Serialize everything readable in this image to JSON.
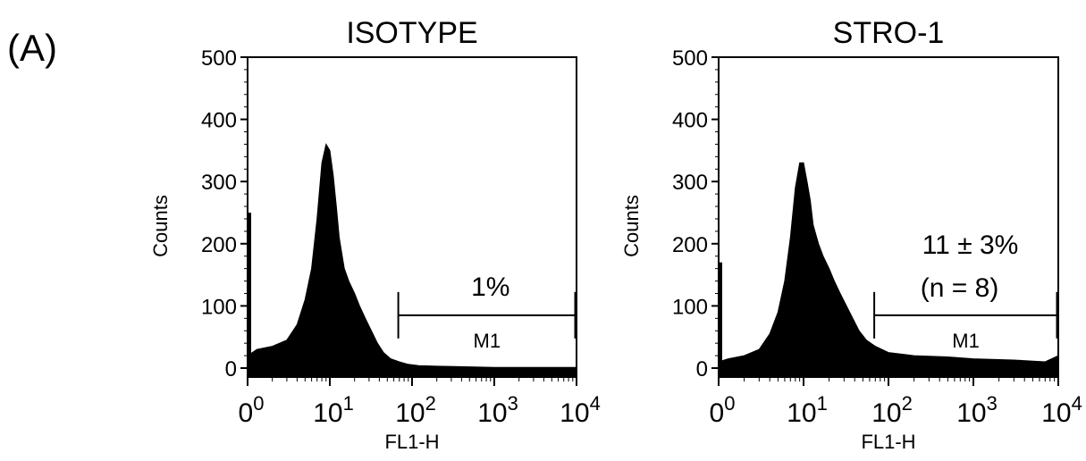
{
  "figure": {
    "panel_label": "(A)"
  },
  "colors": {
    "histogram": "#000000",
    "background": "#ffffff"
  },
  "chart_data": [
    {
      "type": "histogram",
      "title": "ISOTYPE",
      "xlabel": "FL1-H",
      "ylabel": "Counts",
      "x_scale": "log",
      "xlim": [
        1,
        10000
      ],
      "ylim": [
        0,
        500
      ],
      "y_ticks": [
        "0",
        "100",
        "200",
        "300",
        "400",
        "500"
      ],
      "x_ticks": [
        {
          "base": "0",
          "exp": "0"
        },
        {
          "base": "10",
          "exp": "1"
        },
        {
          "base": "10",
          "exp": "2"
        },
        {
          "base": "10",
          "exp": "3"
        },
        {
          "base": "10",
          "exp": "4"
        }
      ],
      "gate": {
        "label": "M1",
        "start": 68,
        "end": 10000,
        "percent_label": "1%",
        "note": ""
      },
      "profile": {
        "x": [
          1,
          1.3,
          2,
          3,
          4,
          5,
          6,
          7,
          8,
          9,
          10,
          11,
          12,
          13,
          15,
          17,
          20,
          23,
          27,
          32,
          38,
          45,
          55,
          70,
          90,
          120,
          200,
          500,
          1000,
          3000,
          10000
        ],
        "y": [
          20,
          30,
          35,
          45,
          70,
          110,
          160,
          240,
          330,
          360,
          350,
          310,
          260,
          210,
          160,
          140,
          120,
          100,
          80,
          60,
          40,
          25,
          15,
          10,
          6,
          4,
          3,
          2,
          1,
          1,
          1
        ]
      },
      "spike_at_zero": 250
    },
    {
      "type": "histogram",
      "title": "STRO-1",
      "xlabel": "FL1-H",
      "ylabel": "Counts",
      "x_scale": "log",
      "xlim": [
        1,
        10000
      ],
      "ylim": [
        0,
        500
      ],
      "y_ticks": [
        "0",
        "100",
        "200",
        "300",
        "400",
        "500"
      ],
      "x_ticks": [
        {
          "base": "0",
          "exp": "0"
        },
        {
          "base": "10",
          "exp": "1"
        },
        {
          "base": "10",
          "exp": "2"
        },
        {
          "base": "10",
          "exp": "3"
        },
        {
          "base": "10",
          "exp": "4"
        }
      ],
      "gate": {
        "label": "M1",
        "start": 68,
        "end": 10000,
        "percent_label": "11 ± 3%",
        "note": "(n = 8)"
      },
      "profile": {
        "x": [
          1,
          1.3,
          2,
          3,
          4,
          5,
          6,
          7,
          8,
          9,
          10,
          11,
          12,
          13,
          15,
          17,
          20,
          23,
          27,
          32,
          38,
          45,
          55,
          70,
          100,
          200,
          500,
          1000,
          3000,
          7000,
          10000
        ],
        "y": [
          10,
          15,
          20,
          30,
          55,
          90,
          140,
          210,
          290,
          330,
          330,
          300,
          270,
          230,
          200,
          180,
          160,
          140,
          120,
          100,
          80,
          60,
          45,
          35,
          25,
          20,
          18,
          15,
          13,
          10,
          20
        ]
      },
      "spike_at_zero": 170
    }
  ]
}
